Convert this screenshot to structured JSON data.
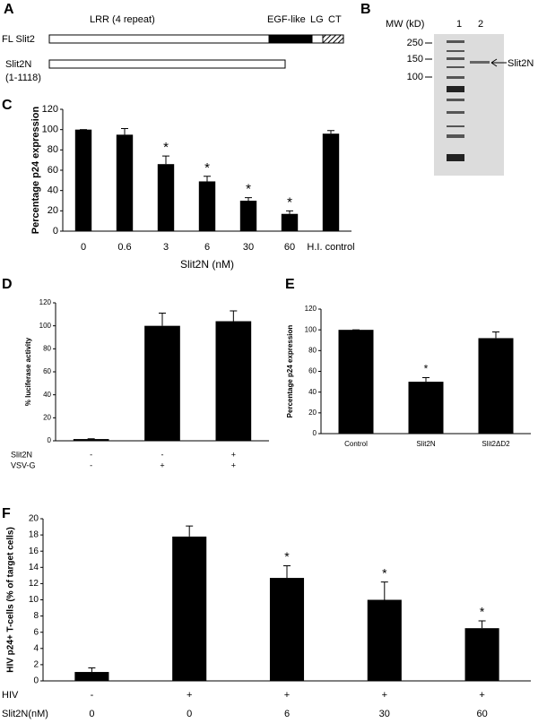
{
  "panel_a": {
    "label": "A",
    "domains": [
      "LRR (4 repeat)",
      "EGF-like",
      "LG",
      "CT"
    ],
    "constructs": [
      "FL Slit2",
      "Slit2N"
    ],
    "range": "(1-1118)"
  },
  "panel_b": {
    "label": "B",
    "axis_title": "MW (kD)",
    "lanes": [
      "1",
      "2"
    ],
    "markers": [
      250,
      150,
      100
    ],
    "band_label": "Slit2N"
  },
  "chart_data": [
    {
      "type": "bar",
      "panel_label": "C",
      "y_label": "Percentage p24 expression",
      "x_label": "Slit2N (nM)",
      "categories": [
        "0",
        "0.6",
        "3",
        "6",
        "30",
        "60",
        "H.I. control"
      ],
      "values": [
        100,
        95,
        66,
        49,
        30,
        17,
        96
      ],
      "errors": [
        0,
        6,
        8,
        5,
        3,
        3,
        3
      ],
      "significance": [
        null,
        null,
        "*",
        "*",
        "*",
        "*",
        null
      ],
      "color": "#000000",
      "ylim": [
        0,
        120
      ],
      "yticks": [
        0,
        20,
        40,
        60,
        80,
        100,
        120
      ]
    },
    {
      "type": "bar",
      "panel_label": "D",
      "y_label": "% luciferase activity",
      "values": [
        1.5,
        100,
        104
      ],
      "errors": [
        0.3,
        11,
        9
      ],
      "condition_rows": [
        {
          "name": "Slit2N",
          "values": [
            "-",
            "-",
            "+"
          ]
        },
        {
          "name": "VSV-G",
          "values": [
            "-",
            "+",
            "+"
          ]
        }
      ],
      "color": "#000000",
      "ylim": [
        0,
        120
      ],
      "yticks": [
        0,
        20,
        40,
        60,
        80,
        100,
        120
      ]
    },
    {
      "type": "bar",
      "panel_label": "E",
      "y_label": "Percentage p24 expression",
      "categories": [
        "Control",
        "Slit2N",
        "Slit2ΔD2"
      ],
      "values": [
        100,
        50,
        92
      ],
      "errors": [
        0,
        4,
        6
      ],
      "significance": [
        null,
        "*",
        null
      ],
      "color": "#000000",
      "ylim": [
        0,
        120
      ],
      "yticks": [
        0,
        20,
        40,
        60,
        80,
        100,
        120
      ]
    },
    {
      "type": "bar",
      "panel_label": "F",
      "y_label": "HIV p24+ T-cells (% of target cells)",
      "values": [
        1.1,
        17.8,
        12.7,
        10,
        6.5
      ],
      "errors": [
        0.5,
        1.3,
        1.5,
        2.2,
        0.9
      ],
      "significance": [
        null,
        null,
        "*",
        "*",
        "*"
      ],
      "condition_rows": [
        {
          "name": "HIV",
          "values": [
            "-",
            "+",
            "+",
            "+",
            "+"
          ]
        },
        {
          "name": "Slit2N(nM)",
          "values": [
            "0",
            "0",
            "6",
            "30",
            "60"
          ]
        }
      ],
      "color": "#000000",
      "ylim": [
        0,
        20
      ],
      "yticks": [
        0,
        2,
        4,
        6,
        8,
        10,
        12,
        14,
        16,
        18,
        20
      ]
    }
  ]
}
